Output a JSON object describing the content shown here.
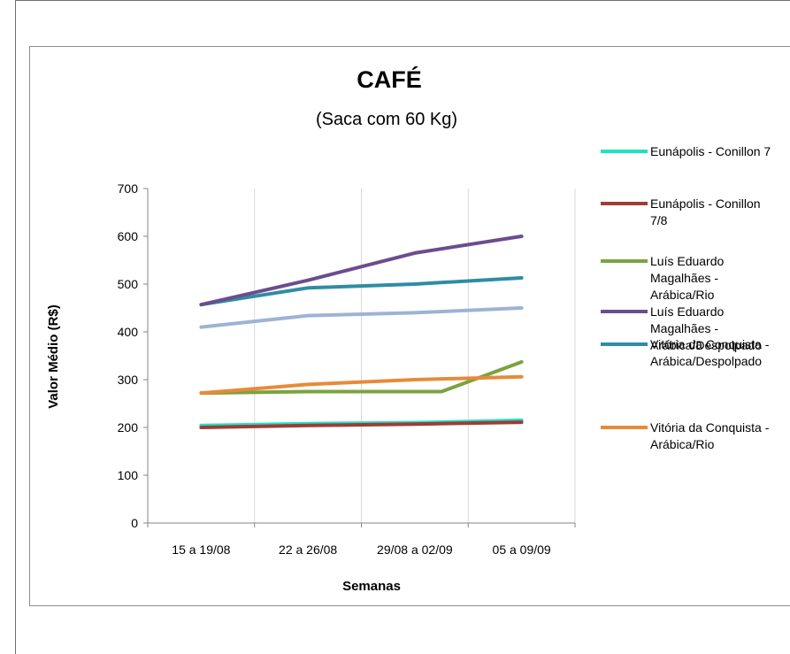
{
  "chart_data": {
    "type": "line",
    "title": "CAFÉ",
    "subtitle": "(Saca com 60 Kg)",
    "xlabel": "Semanas",
    "ylabel": "Valor Médio (R$)",
    "categories": [
      "15 a 19/08",
      "22 a 26/08",
      "29/08 a 02/09",
      "05 a 09/09"
    ],
    "ylim": [
      0,
      700
    ],
    "yticks": [
      0,
      100,
      200,
      300,
      400,
      500,
      600,
      700
    ],
    "grid": true,
    "legend_position": "right",
    "x_positions": [
      0.5,
      1.5,
      2.5,
      3.5
    ],
    "series": [
      {
        "name": "Eunápolis - Conillon 7",
        "color": "#1de3c4",
        "in_legend": true,
        "x": [
          0.5,
          1.5,
          2.5,
          3.5
        ],
        "values": [
          204,
          208,
          210,
          215
        ]
      },
      {
        "name": "Eunápolis - Conillon 7/8",
        "color": "#a03b37",
        "in_legend": true,
        "x": [
          0.5,
          1.5,
          2.5,
          3.5
        ],
        "values": [
          200,
          204,
          207,
          211
        ]
      },
      {
        "name": "Luís Eduardo Magalhães - Arábica/Rio",
        "color": "#7aa33f",
        "in_legend": true,
        "x": [
          0.5,
          1.5,
          2.5,
          2.75,
          3.5
        ],
        "values": [
          272,
          275,
          275,
          275,
          337
        ]
      },
      {
        "name": "Luís Eduardo Magalhães - Arábica/Despolpado",
        "color": "#6b4d8f",
        "in_legend": true,
        "x": [
          0.5,
          1.5,
          2.5,
          3.5
        ],
        "values": [
          457,
          508,
          565,
          600
        ]
      },
      {
        "name": "Vitória da Conquista - Arábica/Despolpado",
        "color": "#2f8ca5",
        "in_legend": true,
        "x": [
          0.5,
          1.5,
          2.5,
          3.5
        ],
        "values": [
          457,
          492,
          500,
          513
        ]
      },
      {
        "name": "Vitória da Conquista - Arábica/Rio",
        "color": "#e88a3a",
        "in_legend": true,
        "x": [
          0.5,
          1.5,
          2.5,
          3.5
        ],
        "values": [
          272,
          290,
          300,
          306
        ]
      },
      {
        "name": "",
        "color": "#9db3d6",
        "in_legend": false,
        "x": [
          0.5,
          1.5,
          2.5,
          3.5
        ],
        "values": [
          410,
          434,
          440,
          450
        ]
      }
    ],
    "legend_lines": [
      [
        "Eunápolis - Conillon 7"
      ],
      [
        "Eunápolis - Conillon",
        "7/8"
      ],
      [
        "Luís Eduardo",
        "Magalhães -",
        "Arábica/Rio"
      ],
      [
        "Luís Eduardo",
        "Magalhães -",
        "Arábica/Despolpado"
      ],
      [
        "Vitória da Conquista -",
        "Arábica/Despolpado"
      ],
      [
        "Vitória da Conquista -",
        "Arábica/Rio"
      ]
    ]
  }
}
